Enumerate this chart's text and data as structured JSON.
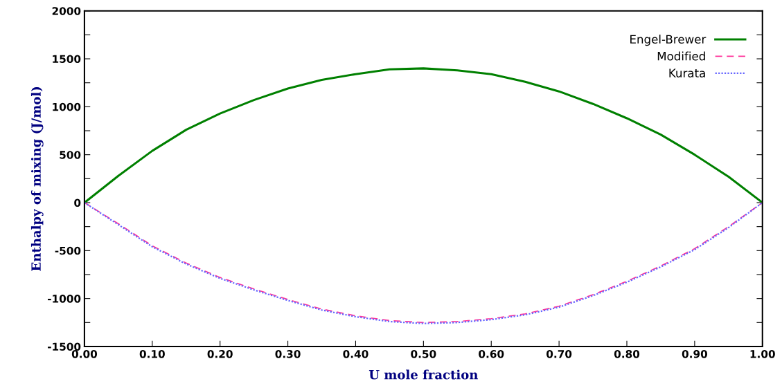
{
  "chart_data": {
    "type": "line",
    "xlabel": "U mole fraction",
    "ylabel": "Enthalpy of mixing (J/mol)",
    "x": [
      0,
      0.05,
      0.1,
      0.15,
      0.2,
      0.25,
      0.3,
      0.35,
      0.4,
      0.45,
      0.5,
      0.55,
      0.6,
      0.65,
      0.7,
      0.75,
      0.8,
      0.85,
      0.9,
      0.95,
      1.0
    ],
    "series": [
      {
        "name": "Engel-Brewer",
        "color": "#008000",
        "line_style": "solid",
        "values": [
          0,
          280,
          540,
          760,
          930,
          1070,
          1190,
          1280,
          1340,
          1390,
          1400,
          1380,
          1340,
          1260,
          1160,
          1030,
          880,
          710,
          500,
          270,
          0
        ]
      },
      {
        "name": "Modified",
        "color": "#ff3399",
        "line_style": "dashed",
        "values": [
          0,
          -220,
          -450,
          -630,
          -780,
          -900,
          -1010,
          -1110,
          -1180,
          -1230,
          -1250,
          -1240,
          -1210,
          -1160,
          -1080,
          -960,
          -820,
          -660,
          -480,
          -250,
          0
        ]
      },
      {
        "name": "Kurata",
        "color": "#6666ff",
        "line_style": "dotted",
        "values": [
          0,
          -230,
          -460,
          -640,
          -790,
          -910,
          -1020,
          -1120,
          -1190,
          -1240,
          -1260,
          -1250,
          -1220,
          -1170,
          -1090,
          -970,
          -830,
          -670,
          -490,
          -260,
          0
        ]
      }
    ],
    "xlim": [
      0,
      1
    ],
    "ylim": [
      -1500,
      2000
    ],
    "xticks": [
      {
        "value": 0,
        "label": "0.00"
      },
      {
        "value": 0.1,
        "label": "0.10"
      },
      {
        "value": 0.2,
        "label": "0.20"
      },
      {
        "value": 0.3,
        "label": "0.30"
      },
      {
        "value": 0.4,
        "label": "0.40"
      },
      {
        "value": 0.5,
        "label": "0.50"
      },
      {
        "value": 0.6,
        "label": "0.60"
      },
      {
        "value": 0.7,
        "label": "0.70"
      },
      {
        "value": 0.8,
        "label": "0.80"
      },
      {
        "value": 0.9,
        "label": "0.90"
      },
      {
        "value": 1.0,
        "label": "1.00"
      }
    ],
    "yticks": [
      -1500,
      {
        "value": -1250,
        "label": null
      },
      -1000,
      {
        "value": -750,
        "label": null
      },
      -500,
      {
        "value": -250,
        "label": null
      },
      0,
      {
        "value": 250,
        "label": null
      },
      500,
      {
        "value": 750,
        "label": null
      },
      1000,
      {
        "value": 1250,
        "label": null
      },
      1500,
      {
        "value": 1750,
        "label": null
      },
      2000
    ],
    "grid": false,
    "legend": "top right",
    "marker": "none"
  }
}
